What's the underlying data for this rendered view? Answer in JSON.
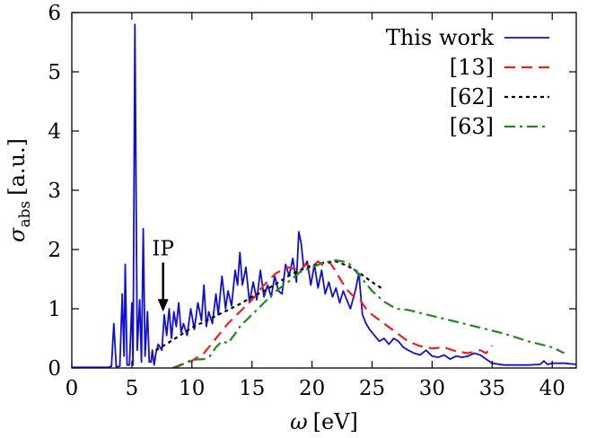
{
  "chart_data": {
    "type": "line",
    "xlabel": {
      "symbol": "ω",
      "unit": "[eV]"
    },
    "ylabel": {
      "symbol": "σ",
      "subscript": "abs",
      "unit": "[a.u.]"
    },
    "xlim": [
      0,
      42
    ],
    "ylim": [
      0,
      6
    ],
    "xticks": [
      0,
      5,
      10,
      15,
      20,
      25,
      30,
      35,
      40
    ],
    "yticks": [
      0,
      1,
      2,
      3,
      4,
      5,
      6
    ],
    "grid": false,
    "legend_position": "top-right",
    "annotation": {
      "text": "IP",
      "x": 7.6,
      "y_tail": 1.78,
      "y_head": 0.95
    },
    "series": [
      {
        "name": "This work",
        "color": "#1010d0",
        "style": "solid",
        "points": [
          [
            0,
            0.01
          ],
          [
            3.0,
            0.01
          ],
          [
            3.3,
            0.03
          ],
          [
            3.5,
            0.75
          ],
          [
            3.7,
            0.02
          ],
          [
            4.0,
            0.03
          ],
          [
            4.2,
            1.25
          ],
          [
            4.35,
            0.2
          ],
          [
            4.45,
            1.75
          ],
          [
            4.6,
            0.05
          ],
          [
            4.8,
            0.05
          ],
          [
            5.0,
            1.1
          ],
          [
            5.1,
            0.05
          ],
          [
            5.25,
            5.8
          ],
          [
            5.45,
            0.3
          ],
          [
            5.65,
            1.15
          ],
          [
            5.8,
            0.1
          ],
          [
            5.95,
            2.35
          ],
          [
            6.1,
            0.2
          ],
          [
            6.3,
            0.95
          ],
          [
            6.45,
            0.1
          ],
          [
            6.6,
            0.1
          ],
          [
            6.7,
            0.3
          ],
          [
            6.85,
            0.05
          ],
          [
            7.0,
            0.25
          ],
          [
            7.2,
            0.4
          ],
          [
            7.5,
            0.3
          ],
          [
            7.7,
            0.9
          ],
          [
            7.9,
            0.55
          ],
          [
            8.1,
            1.0
          ],
          [
            8.3,
            0.5
          ],
          [
            8.5,
            0.95
          ],
          [
            8.7,
            0.7
          ],
          [
            8.9,
            1.1
          ],
          [
            9.1,
            0.6
          ],
          [
            9.3,
            0.75
          ],
          [
            9.6,
            0.55
          ],
          [
            9.9,
            1.0
          ],
          [
            10.2,
            0.65
          ],
          [
            10.5,
            1.1
          ],
          [
            10.8,
            0.8
          ],
          [
            11.0,
            1.4
          ],
          [
            11.2,
            0.7
          ],
          [
            11.4,
            0.95
          ],
          [
            11.7,
            0.75
          ],
          [
            12.0,
            1.25
          ],
          [
            12.2,
            0.9
          ],
          [
            12.5,
            1.55
          ],
          [
            12.8,
            1.0
          ],
          [
            13.0,
            1.3
          ],
          [
            13.3,
            1.05
          ],
          [
            13.6,
            1.65
          ],
          [
            13.8,
            1.4
          ],
          [
            14.0,
            1.95
          ],
          [
            14.2,
            1.4
          ],
          [
            14.5,
            1.7
          ],
          [
            14.8,
            1.1
          ],
          [
            15.1,
            1.45
          ],
          [
            15.4,
            1.15
          ],
          [
            15.7,
            1.65
          ],
          [
            16.0,
            1.2
          ],
          [
            16.3,
            1.4
          ],
          [
            16.6,
            1.2
          ],
          [
            16.9,
            1.55
          ],
          [
            17.2,
            1.3
          ],
          [
            17.5,
            1.25
          ],
          [
            17.8,
            1.75
          ],
          [
            18.1,
            1.55
          ],
          [
            18.4,
            1.85
          ],
          [
            18.7,
            1.45
          ],
          [
            18.9,
            2.3
          ],
          [
            19.1,
            2.1
          ],
          [
            19.3,
            1.7
          ],
          [
            19.6,
            1.8
          ],
          [
            19.9,
            1.4
          ],
          [
            20.2,
            1.75
          ],
          [
            20.5,
            1.35
          ],
          [
            20.8,
            1.65
          ],
          [
            21.1,
            1.25
          ],
          [
            21.4,
            1.45
          ],
          [
            21.7,
            1.2
          ],
          [
            22.0,
            1.35
          ],
          [
            22.3,
            1.1
          ],
          [
            22.6,
            1.3
          ],
          [
            22.9,
            1.15
          ],
          [
            23.2,
            1.0
          ],
          [
            23.6,
            1.3
          ],
          [
            23.9,
            1.6
          ],
          [
            24.2,
            0.9
          ],
          [
            24.5,
            0.75
          ],
          [
            24.8,
            0.65
          ],
          [
            25.2,
            0.55
          ],
          [
            25.6,
            0.45
          ],
          [
            26.0,
            0.5
          ],
          [
            26.4,
            0.4
          ],
          [
            26.8,
            0.5
          ],
          [
            27.2,
            0.45
          ],
          [
            27.6,
            0.35
          ],
          [
            28.0,
            0.3
          ],
          [
            28.5,
            0.25
          ],
          [
            29.0,
            0.22
          ],
          [
            29.5,
            0.3
          ],
          [
            30.0,
            0.2
          ],
          [
            30.5,
            0.18
          ],
          [
            31.0,
            0.22
          ],
          [
            31.5,
            0.15
          ],
          [
            32.0,
            0.2
          ],
          [
            32.5,
            0.18
          ],
          [
            33.0,
            0.2
          ],
          [
            33.5,
            0.25
          ],
          [
            34.0,
            0.22
          ],
          [
            34.5,
            0.15
          ],
          [
            35.0,
            0.08
          ],
          [
            36.0,
            0.05
          ],
          [
            37.0,
            0.05
          ],
          [
            38.0,
            0.05
          ],
          [
            39.0,
            0.06
          ],
          [
            39.3,
            0.12
          ],
          [
            39.6,
            0.06
          ],
          [
            40.0,
            0.08
          ],
          [
            41.0,
            0.08
          ],
          [
            42.0,
            0.06
          ]
        ]
      },
      {
        "name": "[13]",
        "color": "#ee2020",
        "style": "dashed",
        "points": [
          [
            8.4,
            0.0
          ],
          [
            9.0,
            0.05
          ],
          [
            10.0,
            0.12
          ],
          [
            11.0,
            0.25
          ],
          [
            12.0,
            0.5
          ],
          [
            13.0,
            0.75
          ],
          [
            14.0,
            0.95
          ],
          [
            15.0,
            1.15
          ],
          [
            16.0,
            1.4
          ],
          [
            17.0,
            1.6
          ],
          [
            18.0,
            1.7
          ],
          [
            19.0,
            1.65
          ],
          [
            19.5,
            1.75
          ],
          [
            20.0,
            1.7
          ],
          [
            20.5,
            1.8
          ],
          [
            21.0,
            1.72
          ],
          [
            21.5,
            1.78
          ],
          [
            22.0,
            1.62
          ],
          [
            22.5,
            1.45
          ],
          [
            23.0,
            1.3
          ],
          [
            23.5,
            1.2
          ],
          [
            24.0,
            1.15
          ],
          [
            24.5,
            1.0
          ],
          [
            25.0,
            0.9
          ],
          [
            26.0,
            0.75
          ],
          [
            27.0,
            0.6
          ],
          [
            28.0,
            0.45
          ],
          [
            29.0,
            0.37
          ],
          [
            30.0,
            0.33
          ],
          [
            31.0,
            0.35
          ],
          [
            32.0,
            0.28
          ],
          [
            33.0,
            0.25
          ],
          [
            34.0,
            0.3
          ],
          [
            34.5,
            0.25
          ],
          [
            35.0,
            0.38
          ]
        ]
      },
      {
        "name": "[62]",
        "color": "#000000",
        "style": "dotted",
        "points": [
          [
            7.0,
            0.3
          ],
          [
            8.0,
            0.42
          ],
          [
            9.0,
            0.55
          ],
          [
            10.0,
            0.68
          ],
          [
            11.0,
            0.78
          ],
          [
            12.0,
            0.88
          ],
          [
            13.0,
            0.98
          ],
          [
            14.0,
            1.08
          ],
          [
            15.0,
            1.2
          ],
          [
            16.0,
            1.3
          ],
          [
            17.0,
            1.42
          ],
          [
            18.0,
            1.55
          ],
          [
            19.0,
            1.65
          ],
          [
            20.0,
            1.72
          ],
          [
            21.0,
            1.78
          ],
          [
            22.0,
            1.8
          ],
          [
            23.0,
            1.72
          ],
          [
            24.0,
            1.6
          ],
          [
            25.0,
            1.45
          ],
          [
            26.0,
            1.32
          ]
        ]
      },
      {
        "name": "[63]",
        "color": "#208a20",
        "style": "dashdot",
        "points": [
          [
            8.5,
            0.0
          ],
          [
            9.0,
            0.04
          ],
          [
            10.0,
            0.14
          ],
          [
            11.0,
            0.15
          ],
          [
            11.5,
            0.2
          ],
          [
            12.0,
            0.35
          ],
          [
            12.5,
            0.45
          ],
          [
            13.0,
            0.42
          ],
          [
            13.5,
            0.55
          ],
          [
            14.0,
            0.7
          ],
          [
            15.0,
            0.9
          ],
          [
            16.0,
            1.1
          ],
          [
            17.0,
            1.3
          ],
          [
            18.0,
            1.45
          ],
          [
            19.0,
            1.62
          ],
          [
            20.0,
            1.7
          ],
          [
            21.0,
            1.78
          ],
          [
            22.0,
            1.82
          ],
          [
            23.0,
            1.78
          ],
          [
            24.0,
            1.55
          ],
          [
            25.0,
            1.3
          ],
          [
            26.0,
            1.12
          ],
          [
            27.0,
            1.0
          ],
          [
            28.0,
            0.98
          ],
          [
            30.0,
            0.88
          ],
          [
            32.0,
            0.78
          ],
          [
            34.0,
            0.68
          ],
          [
            36.0,
            0.58
          ],
          [
            38.0,
            0.45
          ],
          [
            40.0,
            0.35
          ],
          [
            41.0,
            0.25
          ]
        ]
      }
    ]
  }
}
